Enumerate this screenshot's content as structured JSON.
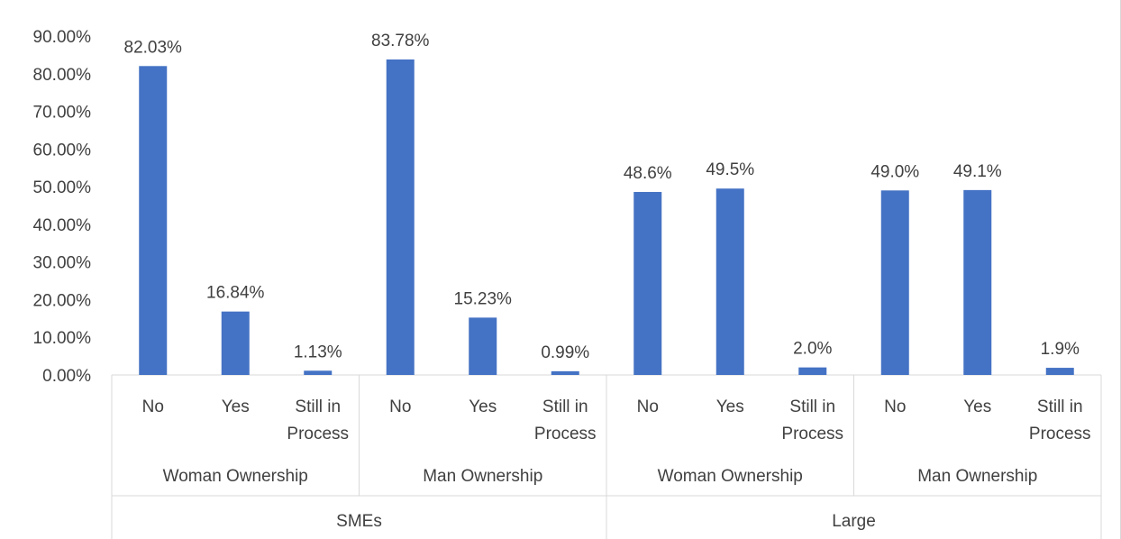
{
  "chart_data": {
    "type": "bar",
    "ylim": [
      0,
      90
    ],
    "y_ticks": [
      "0.00%",
      "10.00%",
      "20.00%",
      "30.00%",
      "40.00%",
      "50.00%",
      "60.00%",
      "70.00%",
      "80.00%",
      "90.00%"
    ],
    "bar_color": "#4472c4",
    "grid": false,
    "legend": "none",
    "groups": [
      {
        "label": "SMEs",
        "subgroups": [
          {
            "label": "Woman Ownership",
            "categories": [
              {
                "label": [
                  "No"
                ],
                "value": 82.03,
                "data_label": "82.03%"
              },
              {
                "label": [
                  "Yes"
                ],
                "value": 16.84,
                "data_label": "16.84%"
              },
              {
                "label": [
                  "Still in",
                  "Process"
                ],
                "value": 1.13,
                "data_label": "1.13%"
              }
            ]
          },
          {
            "label": "Man Ownership",
            "categories": [
              {
                "label": [
                  "No"
                ],
                "value": 83.78,
                "data_label": "83.78%"
              },
              {
                "label": [
                  "Yes"
                ],
                "value": 15.23,
                "data_label": "15.23%"
              },
              {
                "label": [
                  "Still in",
                  "Process"
                ],
                "value": 0.99,
                "data_label": "0.99%"
              }
            ]
          }
        ]
      },
      {
        "label": "Large",
        "subgroups": [
          {
            "label": "Woman Ownership",
            "categories": [
              {
                "label": [
                  "No"
                ],
                "value": 48.6,
                "data_label": "48.6%"
              },
              {
                "label": [
                  "Yes"
                ],
                "value": 49.5,
                "data_label": "49.5%"
              },
              {
                "label": [
                  "Still in",
                  "Process"
                ],
                "value": 2.0,
                "data_label": "2.0%"
              }
            ]
          },
          {
            "label": "Man Ownership",
            "categories": [
              {
                "label": [
                  "No"
                ],
                "value": 49.0,
                "data_label": "49.0%"
              },
              {
                "label": [
                  "Yes"
                ],
                "value": 49.1,
                "data_label": "49.1%"
              },
              {
                "label": [
                  "Still in",
                  "Process"
                ],
                "value": 1.9,
                "data_label": "1.9%"
              }
            ]
          }
        ]
      }
    ]
  }
}
